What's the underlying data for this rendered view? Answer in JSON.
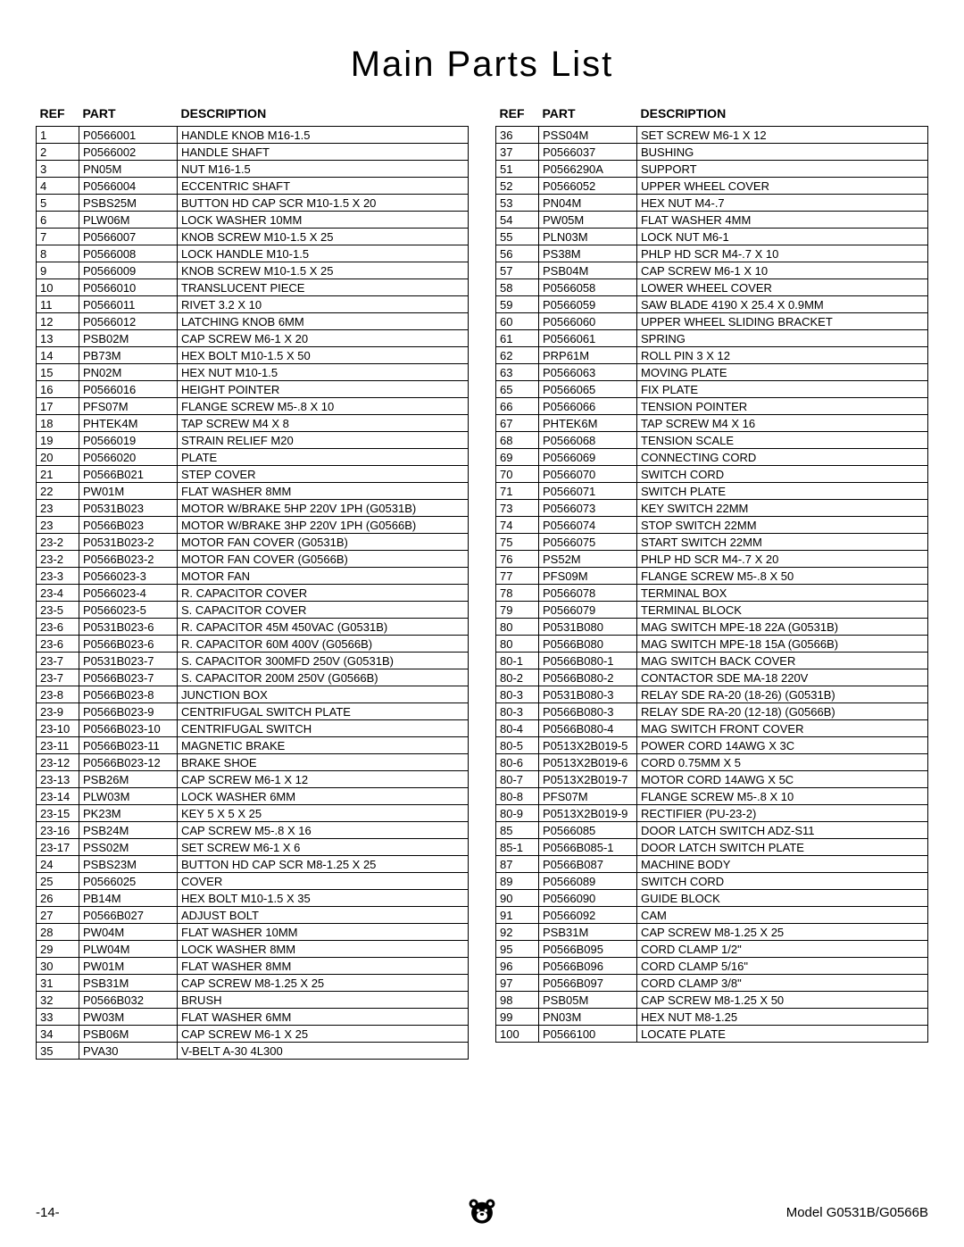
{
  "title": "Main Parts List",
  "headers": {
    "ref": "REF",
    "part": "PART",
    "desc": "DESCRIPTION"
  },
  "left": [
    {
      "ref": "1",
      "part": "P0566001",
      "desc": "HANDLE KNOB M16-1.5"
    },
    {
      "ref": "2",
      "part": "P0566002",
      "desc": "HANDLE SHAFT"
    },
    {
      "ref": "3",
      "part": "PN05M",
      "desc": "NUT M16-1.5"
    },
    {
      "ref": "4",
      "part": "P0566004",
      "desc": "ECCENTRIC SHAFT"
    },
    {
      "ref": "5",
      "part": "PSBS25M",
      "desc": "BUTTON HD CAP SCR M10-1.5 X 20"
    },
    {
      "ref": "6",
      "part": "PLW06M",
      "desc": "LOCK WASHER 10MM"
    },
    {
      "ref": "7",
      "part": "P0566007",
      "desc": "KNOB SCREW M10-1.5 X 25"
    },
    {
      "ref": "8",
      "part": "P0566008",
      "desc": "LOCK HANDLE M10-1.5"
    },
    {
      "ref": "9",
      "part": "P0566009",
      "desc": "KNOB SCREW M10-1.5 X 25"
    },
    {
      "ref": "10",
      "part": "P0566010",
      "desc": "TRANSLUCENT PIECE"
    },
    {
      "ref": "11",
      "part": "P0566011",
      "desc": "RIVET 3.2 X 10"
    },
    {
      "ref": "12",
      "part": "P0566012",
      "desc": "LATCHING KNOB 6MM"
    },
    {
      "ref": "13",
      "part": "PSB02M",
      "desc": "CAP SCREW M6-1 X 20"
    },
    {
      "ref": "14",
      "part": "PB73M",
      "desc": "HEX BOLT M10-1.5 X 50"
    },
    {
      "ref": "15",
      "part": "PN02M",
      "desc": "HEX NUT M10-1.5"
    },
    {
      "ref": "16",
      "part": "P0566016",
      "desc": "HEIGHT POINTER"
    },
    {
      "ref": "17",
      "part": "PFS07M",
      "desc": "FLANGE SCREW M5-.8 X 10"
    },
    {
      "ref": "18",
      "part": "PHTEK4M",
      "desc": "TAP SCREW M4 X 8"
    },
    {
      "ref": "19",
      "part": "P0566019",
      "desc": "STRAIN RELIEF M20"
    },
    {
      "ref": "20",
      "part": "P0566020",
      "desc": "PLATE"
    },
    {
      "ref": "21",
      "part": "P0566B021",
      "desc": "STEP COVER"
    },
    {
      "ref": "22",
      "part": "PW01M",
      "desc": "FLAT WASHER 8MM"
    },
    {
      "ref": "23",
      "part": "P0531B023",
      "desc": "MOTOR W/BRAKE 5HP 220V 1PH (G0531B)"
    },
    {
      "ref": "23",
      "part": "P0566B023",
      "desc": "MOTOR W/BRAKE 3HP 220V 1PH (G0566B)"
    },
    {
      "ref": "23-2",
      "part": "P0531B023-2",
      "desc": "MOTOR FAN COVER (G0531B)"
    },
    {
      "ref": "23-2",
      "part": "P0566B023-2",
      "desc": "MOTOR FAN COVER (G0566B)"
    },
    {
      "ref": "23-3",
      "part": "P0566023-3",
      "desc": "MOTOR FAN"
    },
    {
      "ref": "23-4",
      "part": "P0566023-4",
      "desc": "R. CAPACITOR COVER"
    },
    {
      "ref": "23-5",
      "part": "P0566023-5",
      "desc": "S. CAPACITOR COVER"
    },
    {
      "ref": "23-6",
      "part": "P0531B023-6",
      "desc": "R. CAPACITOR 45M 450VAC (G0531B)"
    },
    {
      "ref": "23-6",
      "part": "P0566B023-6",
      "desc": "R. CAPACITOR 60M 400V (G0566B)"
    },
    {
      "ref": "23-7",
      "part": "P0531B023-7",
      "desc": "S. CAPACITOR 300MFD 250V (G0531B)"
    },
    {
      "ref": "23-7",
      "part": "P0566B023-7",
      "desc": "S. CAPACITOR 200M 250V (G0566B)"
    },
    {
      "ref": "23-8",
      "part": "P0566B023-8",
      "desc": "JUNCTION BOX"
    },
    {
      "ref": "23-9",
      "part": "P0566B023-9",
      "desc": "CENTRIFUGAL SWITCH PLATE"
    },
    {
      "ref": "23-10",
      "part": "P0566B023-10",
      "desc": "CENTRIFUGAL SWITCH"
    },
    {
      "ref": "23-11",
      "part": "P0566B023-11",
      "desc": "MAGNETIC BRAKE"
    },
    {
      "ref": "23-12",
      "part": "P0566B023-12",
      "desc": "BRAKE SHOE"
    },
    {
      "ref": "23-13",
      "part": "PSB26M",
      "desc": "CAP SCREW M6-1 X 12"
    },
    {
      "ref": "23-14",
      "part": "PLW03M",
      "desc": "LOCK WASHER 6MM"
    },
    {
      "ref": "23-15",
      "part": "PK23M",
      "desc": "KEY 5 X 5 X 25"
    },
    {
      "ref": "23-16",
      "part": "PSB24M",
      "desc": "CAP SCREW M5-.8 X 16"
    },
    {
      "ref": "23-17",
      "part": "PSS02M",
      "desc": "SET SCREW M6-1 X 6"
    },
    {
      "ref": "24",
      "part": "PSBS23M",
      "desc": "BUTTON HD CAP SCR M8-1.25 X 25"
    },
    {
      "ref": "25",
      "part": "P0566025",
      "desc": "COVER"
    },
    {
      "ref": "26",
      "part": "PB14M",
      "desc": "HEX BOLT M10-1.5 X 35"
    },
    {
      "ref": "27",
      "part": "P0566B027",
      "desc": "ADJUST BOLT"
    },
    {
      "ref": "28",
      "part": "PW04M",
      "desc": "FLAT WASHER 10MM"
    },
    {
      "ref": "29",
      "part": "PLW04M",
      "desc": "LOCK WASHER 8MM"
    },
    {
      "ref": "30",
      "part": "PW01M",
      "desc": "FLAT WASHER 8MM"
    },
    {
      "ref": "31",
      "part": "PSB31M",
      "desc": "CAP SCREW M8-1.25 X 25"
    },
    {
      "ref": "32",
      "part": "P0566B032",
      "desc": "BRUSH"
    },
    {
      "ref": "33",
      "part": "PW03M",
      "desc": "FLAT WASHER 6MM"
    },
    {
      "ref": "34",
      "part": "PSB06M",
      "desc": "CAP SCREW M6-1 X 25"
    },
    {
      "ref": "35",
      "part": "PVA30",
      "desc": "V-BELT A-30 4L300"
    }
  ],
  "right": [
    {
      "ref": "36",
      "part": "PSS04M",
      "desc": "SET SCREW M6-1 X 12"
    },
    {
      "ref": "37",
      "part": "P0566037",
      "desc": "BUSHING"
    },
    {
      "ref": "51",
      "part": "P0566290A",
      "desc": "SUPPORT"
    },
    {
      "ref": "52",
      "part": "P0566052",
      "desc": "UPPER WHEEL COVER"
    },
    {
      "ref": "53",
      "part": "PN04M",
      "desc": "HEX NUT M4-.7"
    },
    {
      "ref": "54",
      "part": "PW05M",
      "desc": "FLAT WASHER 4MM"
    },
    {
      "ref": "55",
      "part": "PLN03M",
      "desc": "LOCK NUT M6-1"
    },
    {
      "ref": "56",
      "part": "PS38M",
      "desc": "PHLP HD SCR M4-.7 X 10"
    },
    {
      "ref": "57",
      "part": "PSB04M",
      "desc": "CAP SCREW M6-1 X 10"
    },
    {
      "ref": "58",
      "part": "P0566058",
      "desc": "LOWER WHEEL COVER"
    },
    {
      "ref": "59",
      "part": "P0566059",
      "desc": "SAW BLADE 4190 X 25.4 X 0.9MM"
    },
    {
      "ref": "60",
      "part": "P0566060",
      "desc": "UPPER WHEEL SLIDING BRACKET"
    },
    {
      "ref": "61",
      "part": "P0566061",
      "desc": "SPRING"
    },
    {
      "ref": "62",
      "part": "PRP61M",
      "desc": "ROLL PIN 3 X 12"
    },
    {
      "ref": "63",
      "part": "P0566063",
      "desc": "MOVING PLATE"
    },
    {
      "ref": "65",
      "part": "P0566065",
      "desc": "FIX PLATE"
    },
    {
      "ref": "66",
      "part": "P0566066",
      "desc": "TENSION POINTER"
    },
    {
      "ref": "67",
      "part": "PHTEK6M",
      "desc": "TAP SCREW M4 X 16"
    },
    {
      "ref": "68",
      "part": "P0566068",
      "desc": "TENSION SCALE"
    },
    {
      "ref": "69",
      "part": "P0566069",
      "desc": "CONNECTING CORD"
    },
    {
      "ref": "70",
      "part": "P0566070",
      "desc": "SWITCH CORD"
    },
    {
      "ref": "71",
      "part": "P0566071",
      "desc": "SWITCH PLATE"
    },
    {
      "ref": "73",
      "part": "P0566073",
      "desc": "KEY SWITCH 22MM"
    },
    {
      "ref": "74",
      "part": "P0566074",
      "desc": "STOP SWITCH 22MM"
    },
    {
      "ref": "75",
      "part": "P0566075",
      "desc": "START SWITCH 22MM"
    },
    {
      "ref": "76",
      "part": "PS52M",
      "desc": "PHLP HD SCR M4-.7 X 20"
    },
    {
      "ref": "77",
      "part": "PFS09M",
      "desc": "FLANGE SCREW M5-.8 X 50"
    },
    {
      "ref": "78",
      "part": "P0566078",
      "desc": "TERMINAL BOX"
    },
    {
      "ref": "79",
      "part": "P0566079",
      "desc": "TERMINAL BLOCK"
    },
    {
      "ref": "80",
      "part": "P0531B080",
      "desc": "MAG SWITCH MPE-18 22A (G0531B)"
    },
    {
      "ref": "80",
      "part": "P0566B080",
      "desc": "MAG SWITCH MPE-18 15A (G0566B)"
    },
    {
      "ref": "80-1",
      "part": "P0566B080-1",
      "desc": "MAG SWITCH BACK COVER"
    },
    {
      "ref": "80-2",
      "part": "P0566B080-2",
      "desc": "CONTACTOR SDE MA-18 220V"
    },
    {
      "ref": "80-3",
      "part": "P0531B080-3",
      "desc": "RELAY SDE RA-20 (18-26) (G0531B)"
    },
    {
      "ref": "80-3",
      "part": "P0566B080-3",
      "desc": "RELAY SDE RA-20 (12-18) (G0566B)"
    },
    {
      "ref": "80-4",
      "part": "P0566B080-4",
      "desc": "MAG SWITCH FRONT COVER"
    },
    {
      "ref": "80-5",
      "part": "P0513X2B019-5",
      "desc": "POWER CORD 14AWG X 3C"
    },
    {
      "ref": "80-6",
      "part": "P0513X2B019-6",
      "desc": "CORD  0.75MM X 5"
    },
    {
      "ref": "80-7",
      "part": "P0513X2B019-7",
      "desc": "MOTOR CORD 14AWG X 5C"
    },
    {
      "ref": "80-8",
      "part": "PFS07M",
      "desc": "FLANGE SCREW M5-.8 X 10"
    },
    {
      "ref": "80-9",
      "part": "P0513X2B019-9",
      "desc": "RECTIFIER (PU-23-2)"
    },
    {
      "ref": "85",
      "part": "P0566085",
      "desc": "DOOR LATCH SWITCH ADZ-S11"
    },
    {
      "ref": "85-1",
      "part": "P0566B085-1",
      "desc": "DOOR LATCH SWITCH PLATE"
    },
    {
      "ref": "87",
      "part": "P0566B087",
      "desc": "MACHINE BODY"
    },
    {
      "ref": "89",
      "part": "P0566089",
      "desc": "SWITCH CORD"
    },
    {
      "ref": "90",
      "part": "P0566090",
      "desc": "GUIDE BLOCK"
    },
    {
      "ref": "91",
      "part": "P0566092",
      "desc": "CAM"
    },
    {
      "ref": "92",
      "part": "PSB31M",
      "desc": "CAP SCREW M8-1.25 X 25"
    },
    {
      "ref": "95",
      "part": "P0566B095",
      "desc": "CORD CLAMP 1/2\""
    },
    {
      "ref": "96",
      "part": "P0566B096",
      "desc": "CORD CLAMP 5/16\""
    },
    {
      "ref": "97",
      "part": "P0566B097",
      "desc": "CORD CLAMP 3/8\""
    },
    {
      "ref": "98",
      "part": "PSB05M",
      "desc": "CAP SCREW M8-1.25 X 50"
    },
    {
      "ref": "99",
      "part": "PN03M",
      "desc": "HEX NUT M8-1.25"
    },
    {
      "ref": "100",
      "part": "P0566100",
      "desc": "LOCATE PLATE"
    }
  ],
  "footer": {
    "page": "-14-",
    "model": "Model G0531B/G0566B"
  }
}
